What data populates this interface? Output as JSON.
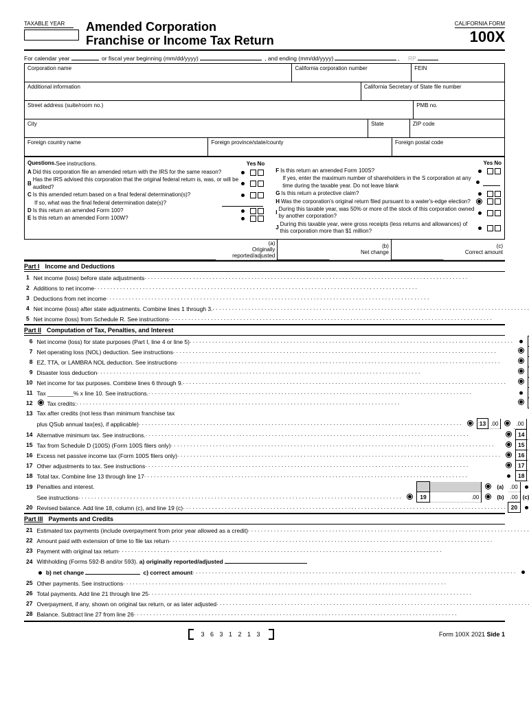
{
  "header": {
    "taxable_year": "TAXABLE YEAR",
    "title1": "Amended Corporation",
    "title2": "Franchise or Income Tax Return",
    "california_form": "CALIFORNIA FORM",
    "form_number": "100X"
  },
  "calendar": {
    "text1": "For calendar year",
    "text2": "or fiscal year beginning (mm/dd/yyyy)",
    "text3": ", and ending (mm/dd/yyyy)",
    "rp": "RP"
  },
  "info": {
    "corp_name": "Corporation name",
    "ca_corp_num": "California corporation number",
    "fein": "FEIN",
    "addl": "Additional information",
    "ca_sos": "California Secretary of State file number",
    "street": "Street address (suite/room no.)",
    "pmb": "PMB no.",
    "city": "City",
    "state": "State",
    "zip": "ZIP code",
    "foreign_country": "Foreign country name",
    "foreign_prov": "Foreign province/state/county",
    "foreign_postal": "Foreign postal code"
  },
  "questions": {
    "heading": "Questions.",
    "see": "See instructions.",
    "yes": "Yes",
    "no": "No",
    "A": "Did this corporation file an amended return with the IRS for the same reason?",
    "B": "Has the IRS advised this corporation that the original federal return is, was, or will be audited?",
    "C": "Is this amended return based on a final federal determination(s)?",
    "C2": "If so, what was the final federal determination date(s)?",
    "D": "Is this return an amended Form 100?",
    "E": "Is this return an amended Form 100W?",
    "F": "Is this return an amended Form 100S?",
    "F2": "If yes, enter the maximum number of shareholders in the S corporation at any time during the taxable year. Do not leave blank",
    "G": "Is this return a protective claim?",
    "H": "Was the corporation's original return filed pursuant to a water's-edge election?",
    "I": "During this taxable year, was 50% or more of the stock of this corporation owned by another corporation?",
    "J": "During this taxable year, were gross receipts (less returns and allowances) of this corporation more than $1 million?"
  },
  "cols": {
    "a": "(a)",
    "a2": "Originally reported/adjusted",
    "b": "(b)",
    "b2": "Net change",
    "c": "(c)",
    "c2": "Correct amount"
  },
  "part1": {
    "label": "Part I",
    "title": "Income and Deductions"
  },
  "lines1": [
    {
      "n": "1",
      "d": "Net income (loss) before state adjustments"
    },
    {
      "n": "2",
      "d": "Additions to net income"
    },
    {
      "n": "3",
      "d": "Deductions from net income"
    },
    {
      "n": "4",
      "d": "Net income (loss) after state adjustments. Combine lines 1 through 3."
    },
    {
      "n": "5",
      "d": "Net income (loss) from Schedule R. See instructions"
    }
  ],
  "part2": {
    "label": "Part II",
    "title": "Computation of Tax, Penalties, and Interest"
  },
  "lines2": [
    {
      "n": "6",
      "d": "Net income (loss) for state purposes (Part I, line 4 or line 5)",
      "m": "dot"
    },
    {
      "n": "7",
      "d": "Net operating loss (NOL) deduction. See instructions",
      "m": "odot"
    },
    {
      "n": "8",
      "d": "EZ, TTA, or LAMBRA NOL deduction. See instructions",
      "m": "odot"
    },
    {
      "n": "9",
      "d": "Disaster loss deduction",
      "m": "odot"
    },
    {
      "n": "10",
      "d": "Net income for tax purposes. Combine lines 6 through 9.",
      "m": "odot"
    },
    {
      "n": "11",
      "d": "Tax ________% x line 10. See instructions.",
      "m": "dot"
    },
    {
      "n": "12",
      "d": "Tax credits:",
      "m": "odot",
      "pre": "odot"
    }
  ],
  "line13a": "Tax after credits (not less than minimum franchise tax",
  "line13b": "plus QSub annual tax(es), if applicable)",
  "lines2b": [
    {
      "n": "14",
      "d": "Alternative minimum tax. See instructions.",
      "m": "odot"
    },
    {
      "n": "15",
      "d": "Tax from Schedule D (100S) (Form 100S filers only)",
      "m": "odot"
    },
    {
      "n": "16",
      "d": "Excess net passive income tax (Form 100S filers only)",
      "m": "odot"
    },
    {
      "n": "17",
      "d": "Other adjustments to tax. See instructions",
      "m": "odot"
    },
    {
      "n": "18",
      "d": "Total tax. Combine line 13 through line 17",
      "m": "dot"
    }
  ],
  "line19": {
    "d1": "Penalties and interest.",
    "d2": "See instructions"
  },
  "line20": "Revised balance. Add line 18, column (c), and line 19 (c)",
  "part3": {
    "label": "Part III",
    "title": "Payments and Credits"
  },
  "lines3": [
    {
      "n": "21",
      "d": "Estimated tax payments (include overpayment from prior year allowed as a credit)"
    },
    {
      "n": "22",
      "d": "Amount paid with extension of time to file tax return"
    },
    {
      "n": "23",
      "d": "Payment with original tax return"
    }
  ],
  "line24": {
    "d": "Withholding (Forms 592-B and/or 593).",
    "a": "a) originally reported/adjusted",
    "b": "b) net change",
    "c": "c) correct amount",
    "num": "24c"
  },
  "lines3b": [
    {
      "n": "25",
      "d": "Other payments. See instructions"
    },
    {
      "n": "26",
      "d": "Total payments. Add line 21 through line 25"
    },
    {
      "n": "27",
      "d": "Overpayment, if any, shown on original tax return, or as later adjusted"
    },
    {
      "n": "28",
      "d": "Balance. Subtract line 27 from line 26"
    }
  ],
  "footer": {
    "code": "3 6 3 1 2 1 3",
    "form": "Form 100X 2021",
    "side": "Side 1"
  },
  "zero": ".00"
}
